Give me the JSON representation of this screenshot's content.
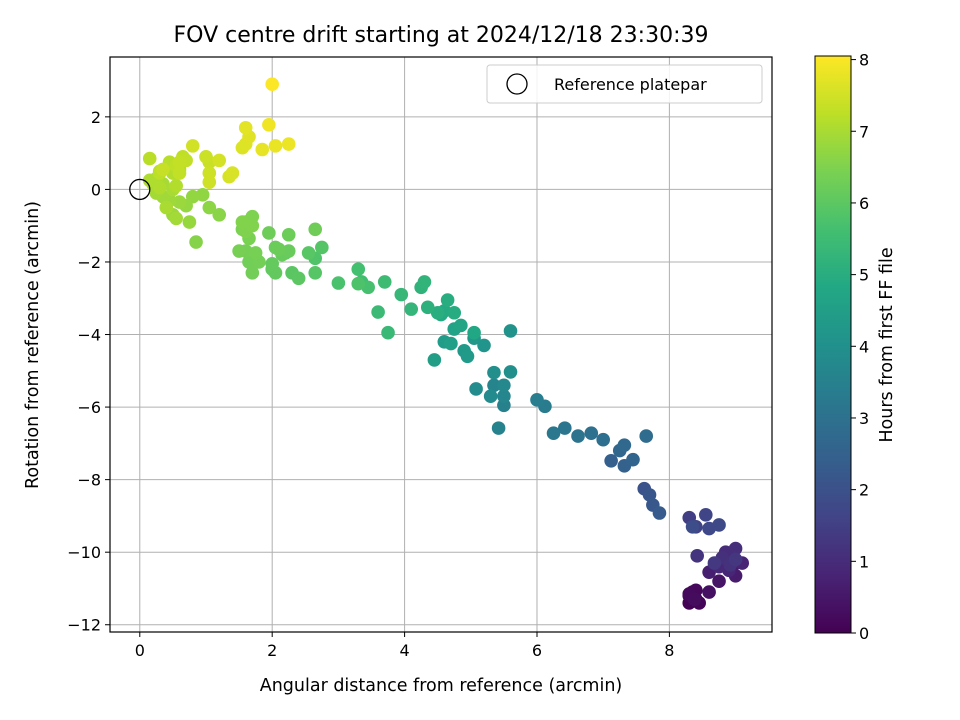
{
  "chart_data": {
    "type": "scatter",
    "title": "FOV centre drift starting at 2024/12/18 23:30:39",
    "xlabel": "Angular distance from reference (arcmin)",
    "ylabel": "Rotation from reference (arcmin)",
    "xlim": [
      -0.45,
      9.55
    ],
    "ylim": [
      -12.2,
      3.65
    ],
    "xticks": [
      0,
      2,
      4,
      6,
      8
    ],
    "yticks": [
      -12,
      -10,
      -8,
      -6,
      -4,
      -2,
      0,
      2
    ],
    "grid": true,
    "legend": {
      "position": "top-right",
      "entries": [
        "Reference platepar"
      ]
    },
    "reference_point": {
      "x": 0,
      "y": 0,
      "label": "Reference platepar"
    },
    "colorbar": {
      "label": "Hours from first FF file",
      "colormap": "viridis",
      "range": [
        0,
        8.05
      ],
      "ticks": [
        0,
        1,
        2,
        3,
        4,
        5,
        6,
        7,
        8
      ]
    },
    "points": [
      [
        8.3,
        -11.4,
        0.02
      ],
      [
        8.4,
        -11.3,
        0.05
      ],
      [
        8.45,
        -11.4,
        0.08
      ],
      [
        8.3,
        -11.2,
        0.1
      ],
      [
        8.35,
        -11.1,
        0.13
      ],
      [
        8.4,
        -11.05,
        0.16
      ],
      [
        8.3,
        -11.15,
        0.2
      ],
      [
        8.38,
        -11.3,
        0.25
      ],
      [
        8.6,
        -11.1,
        0.35
      ],
      [
        8.75,
        -10.8,
        0.45
      ],
      [
        8.95,
        -10.4,
        0.55
      ],
      [
        9.0,
        -10.65,
        0.62
      ],
      [
        8.6,
        -10.55,
        0.68
      ],
      [
        8.8,
        -10.2,
        0.75
      ],
      [
        9.1,
        -10.3,
        0.8
      ],
      [
        8.9,
        -10.5,
        0.85
      ],
      [
        8.75,
        -10.4,
        0.9
      ],
      [
        8.95,
        -10.1,
        0.95
      ],
      [
        8.85,
        -10.0,
        1.0
      ],
      [
        9.0,
        -9.9,
        1.05
      ],
      [
        8.8,
        -10.15,
        1.1
      ],
      [
        8.92,
        -10.35,
        1.15
      ],
      [
        8.42,
        -10.1,
        1.22
      ],
      [
        9.0,
        -10.2,
        1.28
      ],
      [
        8.68,
        -10.3,
        1.3
      ],
      [
        8.3,
        -9.05,
        1.45
      ],
      [
        8.4,
        -9.3,
        1.55
      ],
      [
        8.55,
        -8.97,
        1.65
      ],
      [
        8.6,
        -9.35,
        1.72
      ],
      [
        8.75,
        -9.25,
        1.8
      ],
      [
        8.35,
        -9.3,
        1.88
      ],
      [
        7.62,
        -8.25,
        2.05
      ],
      [
        7.7,
        -8.42,
        2.15
      ],
      [
        7.75,
        -8.7,
        2.22
      ],
      [
        7.85,
        -8.92,
        2.3
      ],
      [
        7.12,
        -7.48,
        2.45
      ],
      [
        7.32,
        -7.62,
        2.52
      ],
      [
        7.45,
        -7.45,
        2.6
      ],
      [
        7.25,
        -7.2,
        2.68
      ],
      [
        7.32,
        -7.05,
        2.75
      ],
      [
        7.65,
        -6.8,
        2.82
      ],
      [
        7.0,
        -6.9,
        2.9
      ],
      [
        6.82,
        -6.72,
        2.98
      ],
      [
        6.62,
        -6.8,
        3.05
      ],
      [
        6.42,
        -6.58,
        3.12
      ],
      [
        6.25,
        -6.72,
        3.2
      ],
      [
        6.12,
        -5.98,
        3.32
      ],
      [
        6.0,
        -5.8,
        3.4
      ],
      [
        5.5,
        -5.95,
        3.5
      ],
      [
        5.42,
        -6.58,
        3.55
      ],
      [
        5.35,
        -5.4,
        3.62
      ],
      [
        5.5,
        -5.7,
        3.68
      ],
      [
        5.5,
        -5.4,
        3.75
      ],
      [
        5.3,
        -5.7,
        3.82
      ],
      [
        5.08,
        -5.5,
        3.88
      ],
      [
        5.35,
        -5.05,
        3.95
      ],
      [
        5.6,
        -5.03,
        4.0
      ],
      [
        5.6,
        -3.9,
        4.1
      ],
      [
        5.2,
        -4.3,
        4.15
      ],
      [
        5.05,
        -4.1,
        4.22
      ],
      [
        4.9,
        -4.45,
        4.3
      ],
      [
        4.95,
        -4.6,
        4.35
      ],
      [
        4.6,
        -4.2,
        4.42
      ],
      [
        4.45,
        -4.7,
        4.48
      ],
      [
        4.7,
        -4.25,
        4.55
      ],
      [
        4.75,
        -3.85,
        4.62
      ],
      [
        4.85,
        -3.75,
        4.7
      ],
      [
        5.05,
        -3.95,
        4.78
      ],
      [
        4.55,
        -3.45,
        4.85
      ],
      [
        4.6,
        -3.35,
        4.9
      ],
      [
        4.75,
        -3.4,
        4.95
      ],
      [
        4.65,
        -3.05,
        5.0
      ],
      [
        4.5,
        -3.4,
        5.05
      ],
      [
        4.35,
        -3.25,
        5.12
      ],
      [
        4.25,
        -2.7,
        5.18
      ],
      [
        4.3,
        -2.55,
        5.22
      ],
      [
        4.1,
        -3.3,
        5.28
      ],
      [
        3.95,
        -2.9,
        5.33
      ],
      [
        3.75,
        -3.95,
        5.4
      ],
      [
        3.6,
        -3.38,
        5.45
      ],
      [
        3.7,
        -2.55,
        5.5
      ],
      [
        3.35,
        -2.55,
        5.57
      ],
      [
        3.3,
        -2.2,
        5.62
      ],
      [
        3.45,
        -2.7,
        5.67
      ],
      [
        3.0,
        -2.58,
        5.72
      ],
      [
        3.3,
        -2.6,
        5.77
      ],
      [
        2.65,
        -1.9,
        5.82
      ],
      [
        2.75,
        -1.6,
        5.87
      ],
      [
        2.65,
        -2.3,
        5.9
      ],
      [
        2.55,
        -1.75,
        5.93
      ],
      [
        2.3,
        -2.3,
        5.96
      ],
      [
        2.4,
        -2.45,
        6.0
      ],
      [
        2.2,
        -1.75,
        6.03
      ],
      [
        2.0,
        -2.2,
        6.06
      ],
      [
        2.05,
        -2.3,
        6.09
      ],
      [
        2.0,
        -2.05,
        6.12
      ],
      [
        2.15,
        -1.8,
        6.15
      ],
      [
        2.25,
        -1.7,
        6.18
      ],
      [
        2.05,
        -1.6,
        6.2
      ],
      [
        2.1,
        -1.65,
        6.22
      ],
      [
        2.25,
        -1.25,
        6.24
      ],
      [
        1.95,
        -1.2,
        6.26
      ],
      [
        2.65,
        -1.1,
        6.28
      ],
      [
        1.65,
        -2.0,
        6.3
      ],
      [
        1.7,
        -2.3,
        6.32
      ],
      [
        1.8,
        -2.0,
        6.34
      ],
      [
        1.6,
        -1.7,
        6.36
      ],
      [
        1.75,
        -1.75,
        6.38
      ],
      [
        1.5,
        -1.7,
        6.4
      ],
      [
        1.65,
        -1.35,
        6.42
      ],
      [
        1.55,
        -1.1,
        6.44
      ],
      [
        1.6,
        -0.9,
        6.46
      ],
      [
        1.7,
        -0.75,
        6.48
      ],
      [
        1.6,
        -1.15,
        6.5
      ],
      [
        1.7,
        -1.0,
        6.52
      ],
      [
        1.55,
        -0.9,
        6.54
      ],
      [
        0.85,
        -1.45,
        6.58
      ],
      [
        1.2,
        -0.7,
        6.62
      ],
      [
        1.05,
        -0.5,
        6.66
      ],
      [
        0.95,
        -0.15,
        6.7
      ],
      [
        0.8,
        -0.2,
        6.73
      ],
      [
        0.7,
        -0.45,
        6.76
      ],
      [
        0.75,
        -0.9,
        6.79
      ],
      [
        0.6,
        -0.35,
        6.82
      ],
      [
        0.5,
        -0.7,
        6.85
      ],
      [
        0.45,
        -0.3,
        6.88
      ],
      [
        0.35,
        -0.2,
        6.9
      ],
      [
        0.55,
        -0.8,
        6.93
      ],
      [
        0.25,
        -0.1,
        6.95
      ],
      [
        0.35,
        0.15,
        6.97
      ],
      [
        0.5,
        0.0,
        6.99
      ],
      [
        0.4,
        -0.5,
        7.01
      ],
      [
        0.2,
        0.15,
        7.03
      ],
      [
        0.25,
        0.3,
        7.05
      ],
      [
        0.15,
        0.25,
        7.07
      ],
      [
        0.3,
        0.05,
        7.09
      ],
      [
        0.55,
        0.1,
        7.11
      ],
      [
        0.5,
        0.45,
        7.13
      ],
      [
        0.6,
        0.55,
        7.15
      ],
      [
        0.45,
        0.75,
        7.17
      ],
      [
        0.3,
        0.5,
        7.19
      ],
      [
        0.15,
        0.85,
        7.21
      ],
      [
        0.3,
        0.45,
        7.23
      ],
      [
        0.55,
        0.65,
        7.25
      ],
      [
        0.65,
        0.9,
        7.27
      ],
      [
        0.7,
        0.8,
        7.29
      ],
      [
        0.6,
        0.45,
        7.31
      ],
      [
        0.6,
        0.75,
        7.33
      ],
      [
        0.35,
        0.55,
        7.35
      ],
      [
        1.05,
        0.75,
        7.38
      ],
      [
        1.0,
        0.9,
        7.41
      ],
      [
        1.05,
        0.45,
        7.44
      ],
      [
        1.05,
        0.2,
        7.47
      ],
      [
        0.8,
        1.2,
        7.5
      ],
      [
        1.2,
        0.8,
        7.53
      ],
      [
        1.35,
        0.35,
        7.56
      ],
      [
        1.4,
        0.45,
        7.59
      ],
      [
        1.55,
        1.15,
        7.62
      ],
      [
        1.6,
        1.25,
        7.65
      ],
      [
        1.65,
        1.45,
        7.68
      ],
      [
        1.6,
        1.7,
        7.72
      ],
      [
        1.85,
        1.1,
        7.76
      ],
      [
        2.05,
        1.2,
        7.8
      ],
      [
        2.25,
        1.25,
        7.84
      ],
      [
        1.95,
        1.78,
        7.88
      ],
      [
        2.0,
        2.9,
        8.02
      ]
    ]
  }
}
